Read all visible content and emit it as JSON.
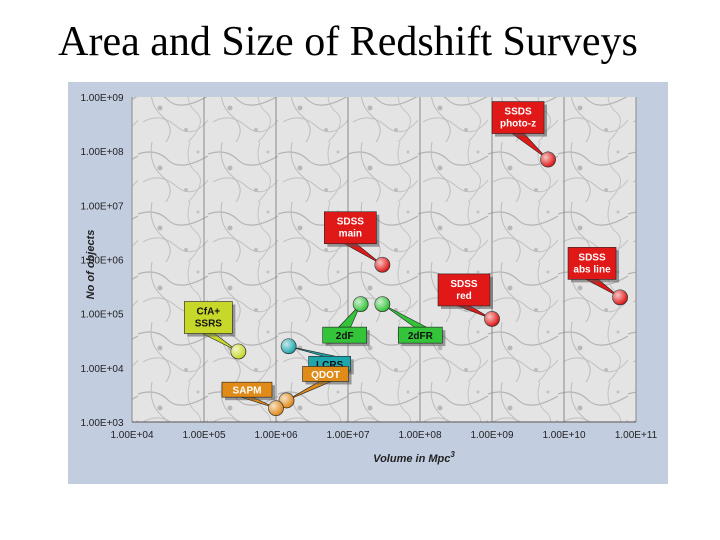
{
  "slide": {
    "title": "Area and Size of Redshift Surveys"
  },
  "chart_data": {
    "type": "scatter",
    "xlabel": "Volume in Mpc",
    "xlabel_sup": "3",
    "ylabel": "No of objects",
    "x_scale": "log",
    "y_scale": "log",
    "xlim": [
      10000,
      100000000000
    ],
    "ylim": [
      1000,
      1000000000
    ],
    "x_ticks": [
      "1.00E+04",
      "1.00E+05",
      "1.00E+06",
      "1.00E+07",
      "1.00E+08",
      "1.00E+09",
      "1.00E+10",
      "1.00E+11"
    ],
    "y_ticks": [
      "1.00E+03",
      "1.00E+04",
      "1.00E+05",
      "1.00E+06",
      "1.00E+07",
      "1.00E+08",
      "1.00E+09"
    ],
    "grid": "vertical",
    "background": "galaxy-map texture",
    "points": [
      {
        "label": [
          "SSDS",
          "photo-z"
        ],
        "x": 6000000000,
        "y": 70000000,
        "color": "#e01818"
      },
      {
        "label": [
          "SDSS",
          "main"
        ],
        "x": 30000000,
        "y": 800000,
        "color": "#e01818"
      },
      {
        "label": [
          "SDSS",
          "abs line"
        ],
        "x": 60000000000,
        "y": 200000,
        "color": "#e01818"
      },
      {
        "label": [
          "SDSS",
          "red"
        ],
        "x": 1000000000,
        "y": 80000,
        "color": "#e01818"
      },
      {
        "label": [
          "2dF"
        ],
        "x": 15000000,
        "y": 150000,
        "color": "#33c43a"
      },
      {
        "label": [
          "2dFR"
        ],
        "x": 30000000,
        "y": 150000,
        "color": "#33c43a"
      },
      {
        "label": [
          "CfA+",
          "SSRS"
        ],
        "x": 300000,
        "y": 20000,
        "color": "#c8d82a"
      },
      {
        "label": [
          "LCRS"
        ],
        "x": 1500000,
        "y": 25000,
        "color": "#1ea6ad"
      },
      {
        "label": [
          "QDOT"
        ],
        "x": 1400000,
        "y": 2500,
        "color": "#e08a18"
      },
      {
        "label": [
          "SAPM"
        ],
        "x": 1000000,
        "y": 1800,
        "color": "#e08a18"
      }
    ]
  }
}
